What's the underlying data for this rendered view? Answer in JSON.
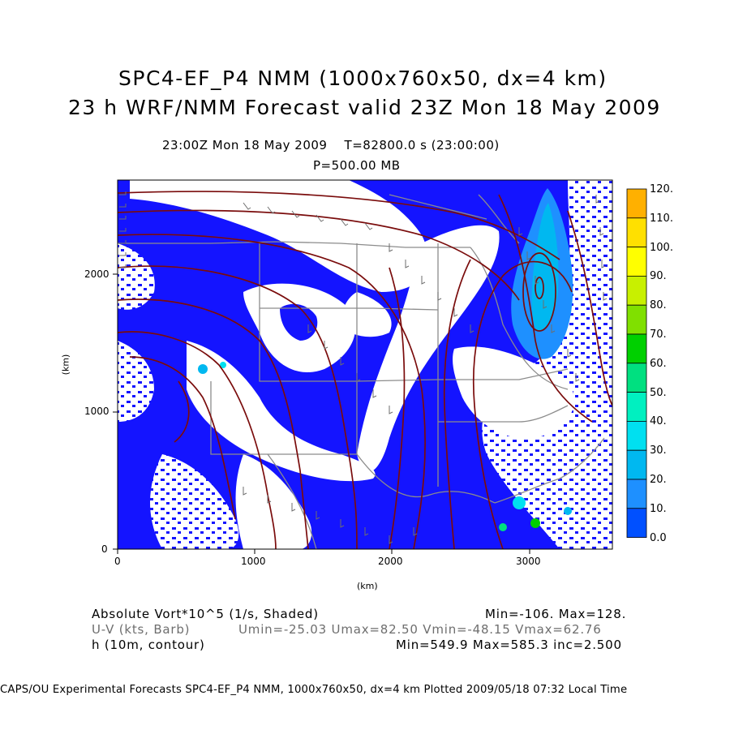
{
  "titles": {
    "line1": "SPC4-EF_P4 NMM (1000x760x50, dx=4 km)",
    "line2": "23 h WRF/NMM Forecast valid 23Z Mon 18 May 2009",
    "time_line": "23:00Z Mon 18 May 2009    T=82800.0 s (23:00:00)",
    "level": "P=500.00 MB"
  },
  "axes": {
    "x_label": "(km)",
    "y_label": "(km)",
    "x_ticks": [
      "0",
      "1000",
      "2000",
      "3000"
    ],
    "y_ticks": [
      "0",
      "1000",
      "2000"
    ]
  },
  "colorbar": {
    "labels": [
      "120.",
      "110.",
      "100.",
      "90.",
      "80.",
      "70.",
      "60.",
      "50.",
      "40.",
      "30.",
      "20.",
      "10.",
      "0.0"
    ],
    "colors": [
      "#ffb000",
      "#ffe000",
      "#ffff00",
      "#c8f000",
      "#80e000",
      "#00d000",
      "#00e080",
      "#00f0c0",
      "#00e0f0",
      "#00b8f0",
      "#1e90ff",
      "#0050ff",
      "#0000ff"
    ]
  },
  "legend": {
    "vort_label": "Absolute Vort*10^5 (1/s, Shaded)",
    "vort_stats": "Min=-106. Max=128.",
    "wind_label": "U-V (kts, Barb)",
    "wind_stats": "Umin=-25.03 Umax=82.50 Vmin=-48.15 Vmax=62.76",
    "height_label": "h (10m, contour)",
    "height_stats": "Min=549.9 Max=585.3 inc=2.500"
  },
  "footer": "CAPS/OU Experimental Forecasts  SPC4-EF_P4 NMM, 1000x760x50, dx=4 km  Plotted 2009/05/18 07:32 Local Time",
  "colors": {
    "vort_shade": "#1414ff",
    "contour": "#7a0c0c",
    "boundaries": "#8c8c8c",
    "barbs": "#6e6e6e"
  }
}
